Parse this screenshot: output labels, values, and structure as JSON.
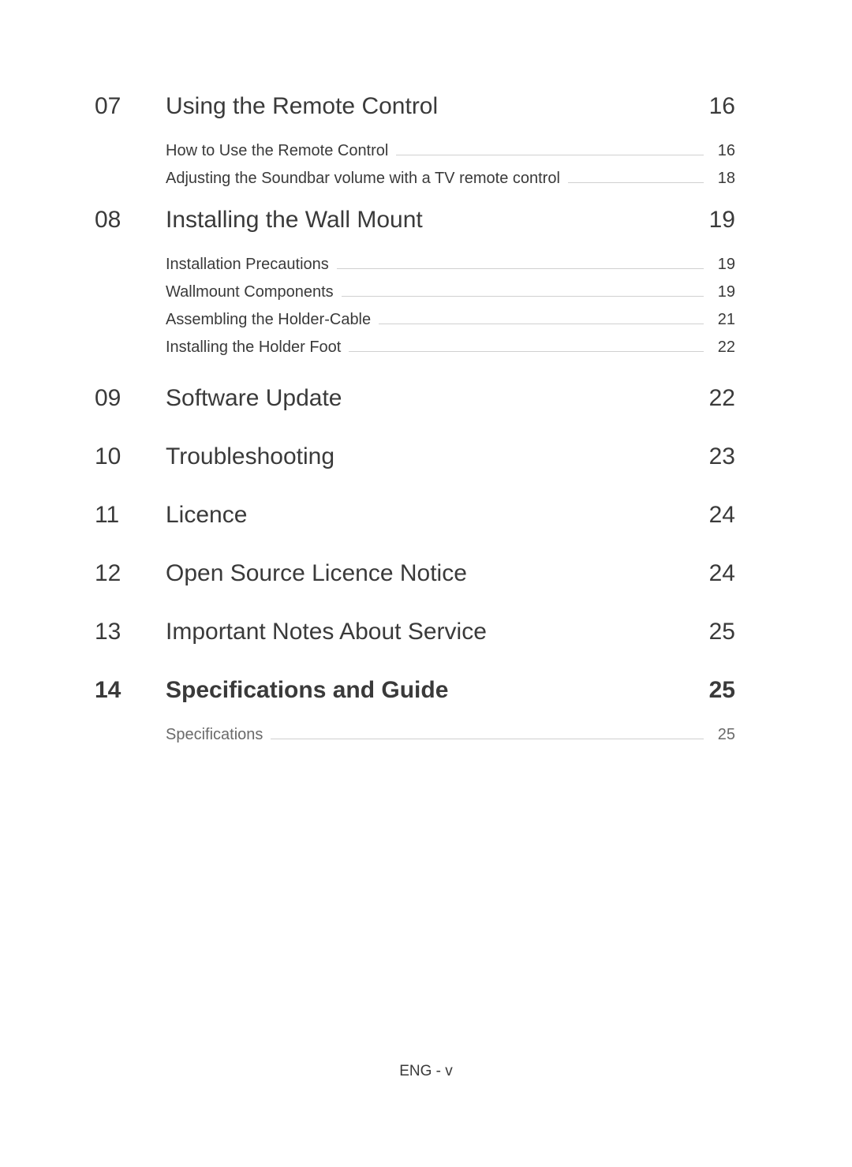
{
  "sections": [
    {
      "num": "07",
      "title": "Using the Remote Control",
      "page": "16",
      "items": [
        {
          "label": "How to Use the Remote Control",
          "page": "16"
        },
        {
          "label": "Adjusting the Soundbar volume with a TV remote control",
          "page": "18"
        }
      ]
    },
    {
      "num": "08",
      "title": "Installing the Wall Mount",
      "page": "19",
      "items": [
        {
          "label": "Installation Precautions",
          "page": "19"
        },
        {
          "label": "Wallmount Components",
          "page": "19"
        },
        {
          "label": "Assembling the Holder-Cable",
          "page": "21"
        },
        {
          "label": "Installing the Holder Foot",
          "page": "22"
        }
      ]
    },
    {
      "num": "09",
      "title": "Software Update",
      "page": "22",
      "items": []
    },
    {
      "num": "10",
      "title": "Troubleshooting",
      "page": "23",
      "items": []
    },
    {
      "num": "11",
      "title": "Licence",
      "page": "24",
      "items": []
    },
    {
      "num": "12",
      "title": "Open Source Licence Notice",
      "page": "24",
      "items": []
    },
    {
      "num": "13",
      "title": "Important Notes About Service",
      "page": "25",
      "items": []
    },
    {
      "num": "14",
      "title": "Specifications and Guide",
      "page": "25",
      "bold": true,
      "items": [
        {
          "label": "Specifications",
          "page": "25",
          "grey": true
        }
      ]
    }
  ],
  "footer": "ENG - v",
  "colors": {
    "background": "#ffffff",
    "text_primary": "#3a3a3a",
    "text_secondary": "#6a6a6a",
    "leader_line": "#d0d0d0"
  },
  "typography": {
    "section_num_size": 30,
    "section_title_size": 30,
    "sub_label_size": 20,
    "footer_size": 19
  }
}
